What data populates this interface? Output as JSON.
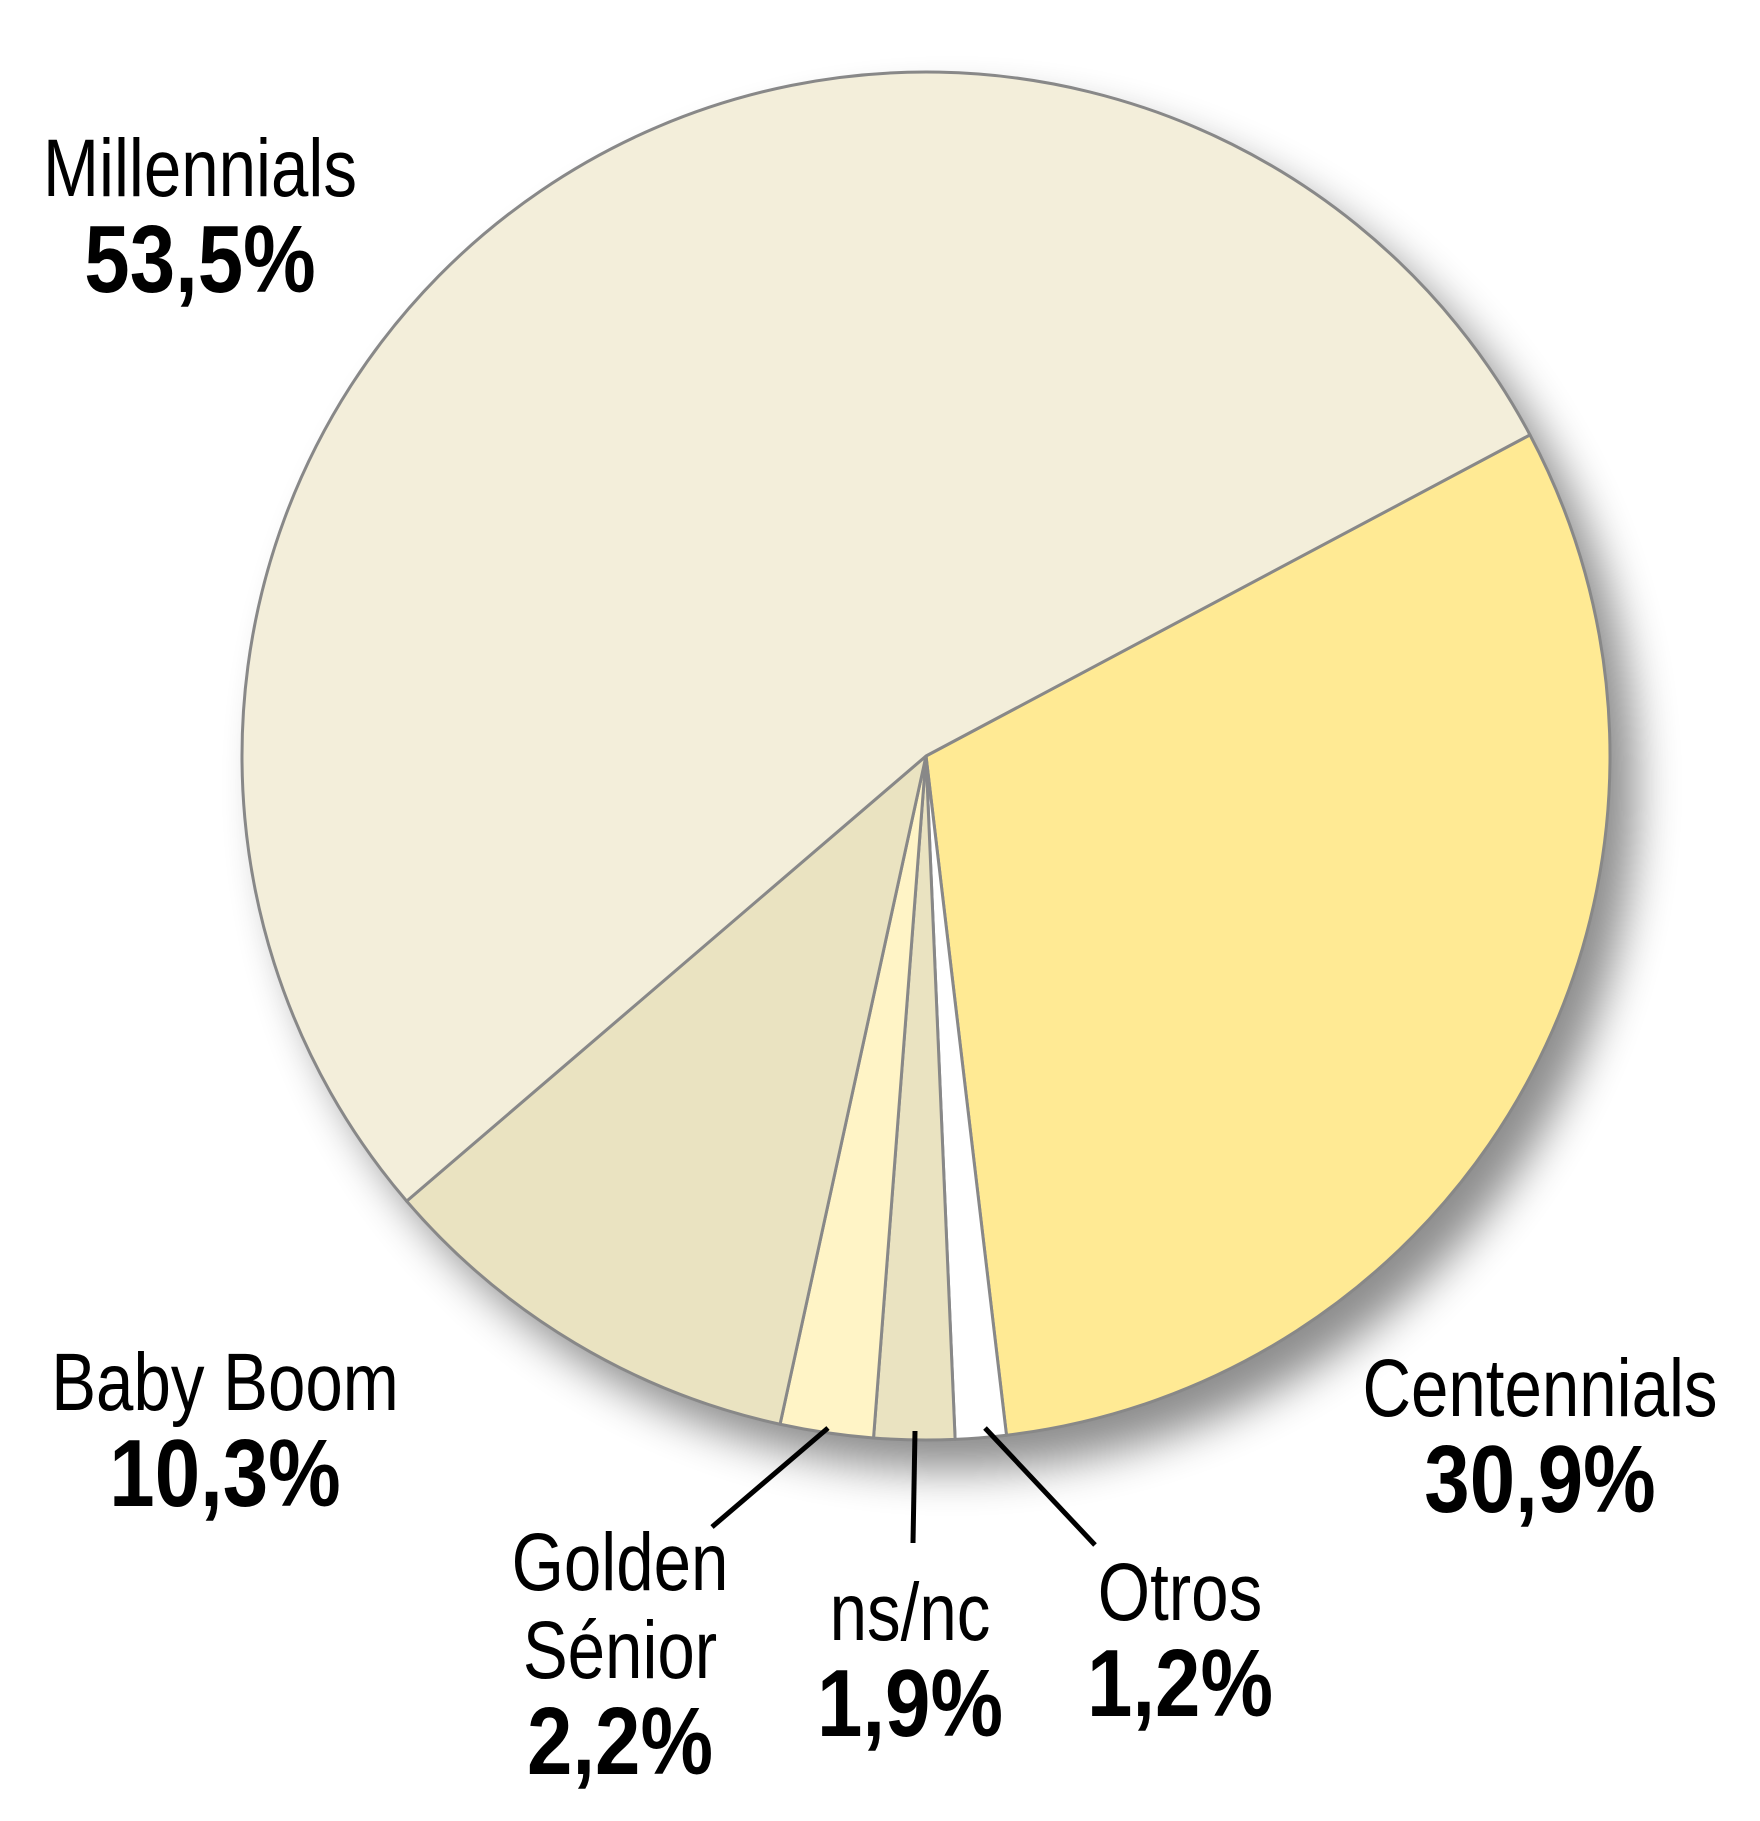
{
  "chart_data": {
    "type": "pie",
    "title": "",
    "start_angle_deg": -28,
    "direction": "clockwise",
    "slices": [
      {
        "label": "Centennials",
        "value": 30.9,
        "display": "30,9%",
        "color": "#FFEA94"
      },
      {
        "label": "Otros",
        "value": 1.2,
        "display": "1,2%",
        "color": "#FFFFFF"
      },
      {
        "label": "ns/nc",
        "value": 1.9,
        "display": "1,9%",
        "color": "#EAE3C1"
      },
      {
        "label": "Golden Sénior",
        "value": 2.2,
        "display": "2,2%",
        "color": "#FFF4C6"
      },
      {
        "label": "Baby Boom",
        "value": 10.3,
        "display": "10,3%",
        "color": "#EAE3C1"
      },
      {
        "label": "Millennials",
        "value": 53.5,
        "display": "53,5%",
        "color": "#F3EEDA"
      }
    ],
    "stroke_color": "#888888",
    "leader_line_color": "#000000"
  },
  "labels": {
    "millennials": {
      "name": "Millennials",
      "value": "53,5%"
    },
    "centennials": {
      "name": "Centennials",
      "value": "30,9%"
    },
    "baby_boom": {
      "name": "Baby Boom",
      "value": "10,3%"
    },
    "golden_senior": {
      "name_line1": "Golden",
      "name_line2": "Sénior",
      "value": "2,2%"
    },
    "ns_nc": {
      "name": "ns/nc",
      "value": "1,9%"
    },
    "otros": {
      "name": "Otros",
      "value": "1,2%"
    }
  }
}
